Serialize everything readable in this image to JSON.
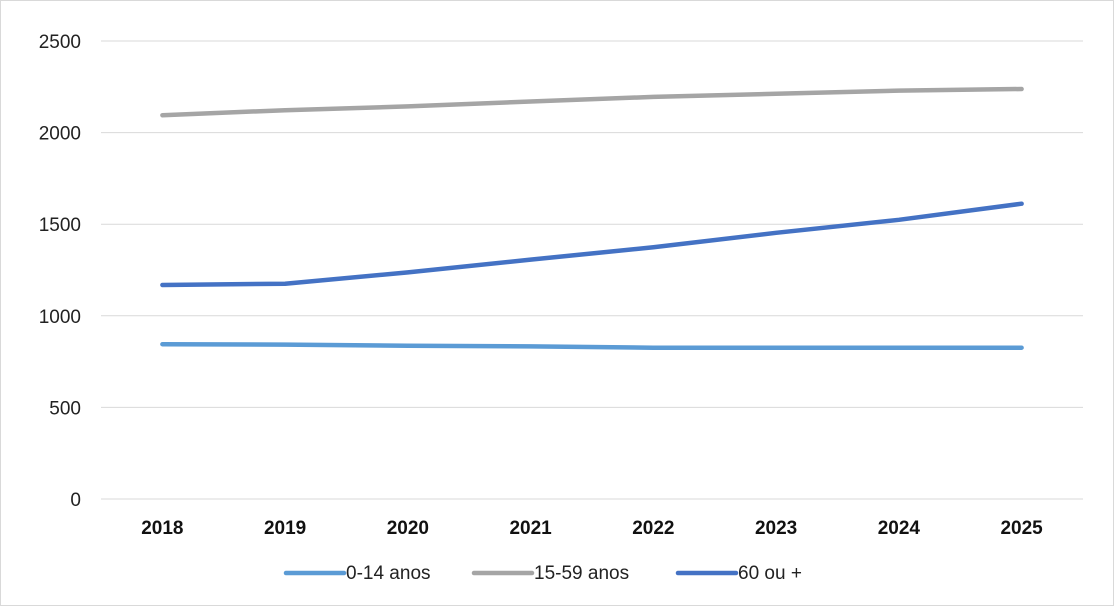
{
  "chart_data": {
    "type": "line",
    "title": "",
    "xlabel": "",
    "ylabel": "",
    "categories": [
      "2018",
      "2019",
      "2020",
      "2021",
      "2022",
      "2023",
      "2024",
      "2025"
    ],
    "ylim": [
      0,
      2500
    ],
    "yticks": [
      "0",
      "500",
      "1000",
      "1500",
      "2000",
      "2500"
    ],
    "grid": "horizontal",
    "legend_position": "bottom",
    "series": [
      {
        "name": "0-14 anos",
        "color": "#5b9bd5",
        "values": [
          845,
          843,
          836,
          833,
          826,
          826,
          826,
          826
        ]
      },
      {
        "name": "15-59 anos",
        "color": "#a5a5a5",
        "values": [
          2095,
          2122,
          2143,
          2170,
          2195,
          2212,
          2229,
          2238
        ]
      },
      {
        "name": "60 ou +",
        "color": "#4472c4",
        "values": [
          1168,
          1175,
          1237,
          1307,
          1374,
          1453,
          1524,
          1612
        ]
      }
    ]
  }
}
